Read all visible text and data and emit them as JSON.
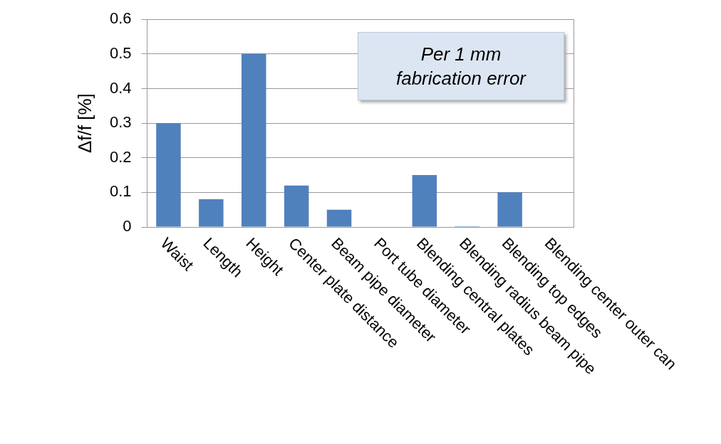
{
  "chart_data": {
    "type": "bar",
    "ylabel": "Δf/f [%]",
    "categories": [
      "Waist",
      "Length",
      "Height",
      "Center plate distance",
      "Beam pipe diameter",
      "Port tube diameter",
      "Blending central plates",
      "Blending radius beam pipe",
      "Blending top edges",
      "Blending center outer can"
    ],
    "values": [
      0.3,
      0.08,
      0.5,
      0.12,
      0.05,
      0,
      0.15,
      0.002,
      0.1,
      0
    ],
    "color": "#4f81bd",
    "ylim": [
      0,
      0.6
    ],
    "yticks": [
      0,
      0.1,
      0.2,
      0.3,
      0.4,
      0.5,
      0.6
    ],
    "grid": "y",
    "legend": false,
    "annotations": [
      "Per 1 mm fabrication error"
    ]
  }
}
